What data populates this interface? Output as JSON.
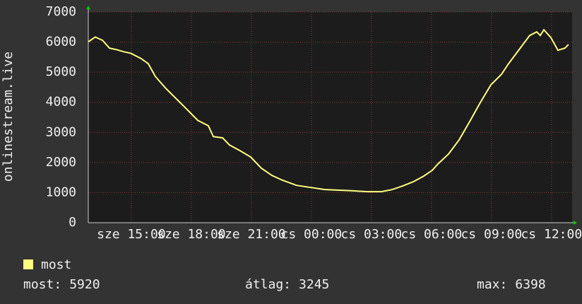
{
  "chart_data": {
    "type": "line",
    "y_label": "onlinestream.live",
    "x": [
      12.85,
      13.2,
      13.56,
      13.91,
      14.26,
      14.62,
      14.97,
      15.5,
      15.85,
      16.2,
      16.73,
      17.26,
      17.79,
      18.32,
      18.85,
      19.1,
      19.56,
      19.91,
      20.44,
      20.97,
      21.5,
      22.03,
      22.56,
      23.26,
      23.97,
      24.67,
      25.38,
      26.09,
      26.79,
      27.5,
      28.03,
      28.56,
      29.09,
      29.62,
      30.04,
      30.32,
      30.85,
      31.38,
      31.91,
      32.44,
      32.97,
      33.5,
      33.85,
      34.38,
      34.91,
      35.26,
      35.44,
      35.62,
      35.97,
      36.32,
      36.67,
      36.85
    ],
    "series": [
      {
        "name": "most",
        "color": "#ffff80",
        "values": [
          6010,
          6170,
          6060,
          5800,
          5750,
          5680,
          5630,
          5450,
          5280,
          4860,
          4460,
          4110,
          3760,
          3400,
          3220,
          2860,
          2820,
          2580,
          2390,
          2180,
          1810,
          1570,
          1410,
          1240,
          1170,
          1100,
          1080,
          1060,
          1030,
          1030,
          1100,
          1220,
          1360,
          1550,
          1740,
          1950,
          2280,
          2750,
          3360,
          3990,
          4580,
          4930,
          5280,
          5750,
          6220,
          6340,
          6220,
          6410,
          6150,
          5730,
          5800,
          5920
        ]
      }
    ],
    "xlim": [
      12.85,
      37.03
    ],
    "xticks": [
      {
        "value": 15,
        "label": "sze 15:00"
      },
      {
        "value": 18,
        "label": "sze 18:00"
      },
      {
        "value": 21,
        "label": "sze 21:00"
      },
      {
        "value": 24,
        "label": "cs 00:00"
      },
      {
        "value": 27,
        "label": "cs 03:00"
      },
      {
        "value": 30,
        "label": "cs 06:00"
      },
      {
        "value": 33,
        "label": "cs 09:00"
      },
      {
        "value": 36,
        "label": "cs 12:00"
      }
    ],
    "ylim": [
      0,
      7000
    ],
    "yticks": [
      0,
      1000,
      2000,
      3000,
      4000,
      5000,
      6000,
      7000
    ],
    "grid": true,
    "stats": [
      {
        "label": "most:",
        "value": 5920
      },
      {
        "label": "átlag:",
        "value": 3245
      },
      {
        "label": "max:",
        "value": 6398
      }
    ]
  }
}
